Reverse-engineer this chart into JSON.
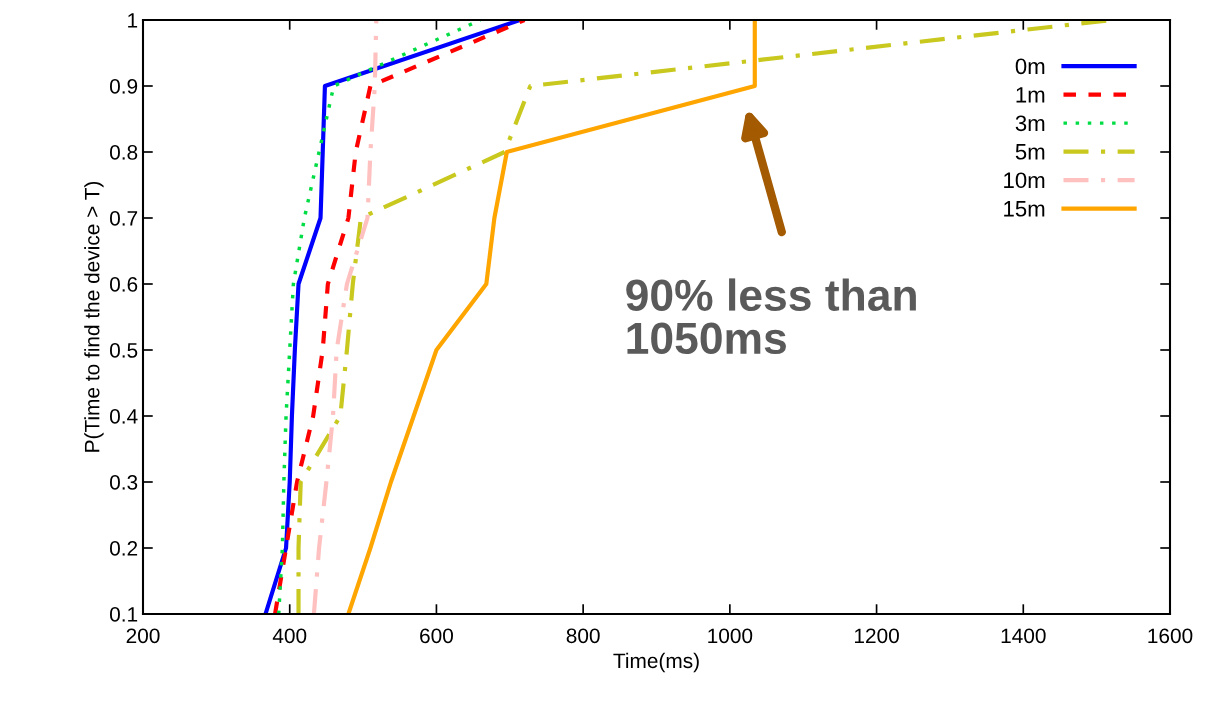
{
  "chart_data": {
    "type": "line",
    "xlabel": "Time(ms)",
    "ylabel": "P(Time to find the device > T)",
    "xlim": [
      200,
      1600
    ],
    "xticks": [
      200,
      400,
      600,
      800,
      1000,
      1200,
      1400,
      1600
    ],
    "ylim": [
      0.1,
      1
    ],
    "yticks": [
      0.1,
      0.2,
      0.3,
      0.4,
      0.5,
      0.6,
      0.7,
      0.8,
      0.9,
      1
    ],
    "grid": false,
    "legend": "top right",
    "marker": "none",
    "series": [
      {
        "name": "0m",
        "color": "#0000ff",
        "line_style": "solid",
        "x": [
          367,
          395,
          400,
          403,
          407,
          412,
          442,
          445,
          448,
          714
        ],
        "values": [
          0.1,
          0.2,
          0.3,
          0.4,
          0.5,
          0.6,
          0.7,
          0.8,
          0.9,
          1.0
        ]
      },
      {
        "name": "1m",
        "color": "#ff0000",
        "line_style": "dashed",
        "x": [
          380,
          395,
          410,
          432,
          445,
          452,
          480,
          490,
          510,
          720
        ],
        "values": [
          0.1,
          0.2,
          0.3,
          0.4,
          0.5,
          0.6,
          0.7,
          0.8,
          0.9,
          1.0
        ]
      },
      {
        "name": "3m",
        "color": "#00dd44",
        "line_style": "dotted",
        "x": [
          385,
          390,
          392,
          395,
          400,
          405,
          420,
          440,
          460,
          660
        ],
        "values": [
          0.1,
          0.2,
          0.3,
          0.4,
          0.5,
          0.6,
          0.7,
          0.8,
          0.9,
          1.0
        ]
      },
      {
        "name": "5m",
        "color": "#c8c81e",
        "line_style": "dashdot",
        "x": [
          412,
          412,
          415,
          469,
          478,
          486,
          497,
          693,
          728,
          1520
        ],
        "values": [
          0.1,
          0.2,
          0.3,
          0.4,
          0.5,
          0.6,
          0.7,
          0.8,
          0.9,
          1.0
        ]
      },
      {
        "name": "10m",
        "color": "#ffc0c0",
        "line_style": "dashdot",
        "x": [
          433,
          440,
          450,
          459,
          464,
          478,
          506,
          510,
          516,
          518
        ],
        "values": [
          0.1,
          0.2,
          0.3,
          0.4,
          0.5,
          0.6,
          0.7,
          0.8,
          0.9,
          1.0
        ]
      },
      {
        "name": "15m",
        "color": "#ffa500",
        "line_style": "solid",
        "x": [
          480,
          510,
          538,
          600,
          668,
          679,
          696,
          1034,
          1034
        ],
        "values": [
          0.1,
          0.2,
          0.3,
          0.5,
          0.6,
          0.7,
          0.8,
          0.9,
          1.0
        ]
      }
    ],
    "annotations": [
      "90% less than\n1050ms"
    ]
  }
}
